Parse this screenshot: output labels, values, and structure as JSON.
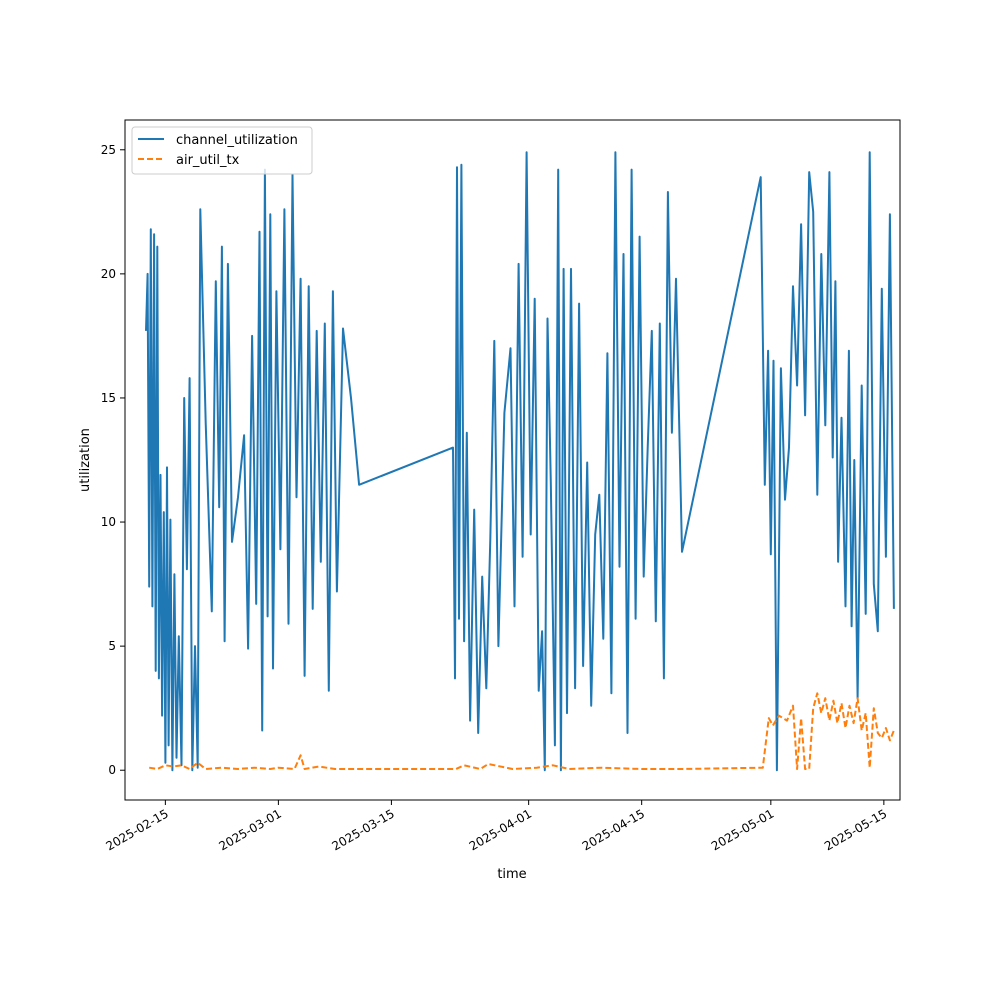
{
  "chart_data": {
    "type": "line",
    "xlabel": "time",
    "ylabel": "utilization",
    "x_type": "date",
    "xlim": [
      "2025-02-10",
      "2025-05-17"
    ],
    "ylim": [
      -1.2,
      26.2
    ],
    "x_ticks": [
      "2025-02-15",
      "2025-03-01",
      "2025-03-15",
      "2025-04-01",
      "2025-04-15",
      "2025-05-01",
      "2025-05-15"
    ],
    "y_ticks": [
      0,
      5,
      10,
      15,
      20,
      25
    ],
    "grid": false,
    "legend_position": "upper-left",
    "series": [
      {
        "name": "channel_utilization",
        "color": "#1f77b4",
        "style": "solid",
        "points": [
          [
            "2025-02-13",
            17.7
          ],
          [
            "2025-02-13",
            20.0
          ],
          [
            "2025-02-13",
            7.4
          ],
          [
            "2025-02-13",
            21.8
          ],
          [
            "2025-02-13",
            6.6
          ],
          [
            "2025-02-14",
            21.6
          ],
          [
            "2025-02-14",
            4.0
          ],
          [
            "2025-02-14",
            21.1
          ],
          [
            "2025-02-14",
            3.7
          ],
          [
            "2025-02-14",
            11.9
          ],
          [
            "2025-02-15",
            2.2
          ],
          [
            "2025-02-15",
            10.4
          ],
          [
            "2025-02-15",
            0.3
          ],
          [
            "2025-02-15",
            12.2
          ],
          [
            "2025-02-15",
            1.0
          ],
          [
            "2025-02-16",
            10.1
          ],
          [
            "2025-02-16",
            0.0
          ],
          [
            "2025-02-16",
            7.9
          ],
          [
            "2025-02-16",
            0.5
          ],
          [
            "2025-02-17",
            5.4
          ],
          [
            "2025-02-17",
            0.2
          ],
          [
            "2025-02-17",
            15.0
          ],
          [
            "2025-02-18",
            8.1
          ],
          [
            "2025-02-18",
            15.8
          ],
          [
            "2025-02-18",
            0.0
          ],
          [
            "2025-02-19",
            5.0
          ],
          [
            "2025-02-19",
            0.1
          ],
          [
            "2025-02-19",
            22.6
          ],
          [
            "2025-02-20",
            14.0
          ],
          [
            "2025-02-21",
            6.4
          ],
          [
            "2025-02-21",
            19.7
          ],
          [
            "2025-02-22",
            10.6
          ],
          [
            "2025-02-22",
            21.1
          ],
          [
            "2025-02-22",
            5.2
          ],
          [
            "2025-02-23",
            20.4
          ],
          [
            "2025-02-23",
            9.2
          ],
          [
            "2025-02-24",
            11.0
          ],
          [
            "2025-02-25",
            13.5
          ],
          [
            "2025-02-25",
            4.9
          ],
          [
            "2025-02-26",
            17.5
          ],
          [
            "2025-02-26",
            6.7
          ],
          [
            "2025-02-27",
            21.7
          ],
          [
            "2025-02-27",
            1.6
          ],
          [
            "2025-02-27",
            24.2
          ],
          [
            "2025-02-28",
            6.2
          ],
          [
            "2025-02-28",
            22.4
          ],
          [
            "2025-02-28",
            4.1
          ],
          [
            "2025-03-01",
            19.3
          ],
          [
            "2025-03-01",
            8.9
          ],
          [
            "2025-03-02",
            22.6
          ],
          [
            "2025-03-02",
            5.9
          ],
          [
            "2025-03-03",
            24.0
          ],
          [
            "2025-03-03",
            11.0
          ],
          [
            "2025-03-04",
            19.8
          ],
          [
            "2025-03-04",
            3.8
          ],
          [
            "2025-03-05",
            19.5
          ],
          [
            "2025-03-05",
            6.5
          ],
          [
            "2025-03-06",
            17.7
          ],
          [
            "2025-03-06",
            8.4
          ],
          [
            "2025-03-07",
            18.0
          ],
          [
            "2025-03-07",
            3.2
          ],
          [
            "2025-03-08",
            19.3
          ],
          [
            "2025-03-08",
            7.2
          ],
          [
            "2025-03-09",
            17.8
          ],
          [
            "2025-03-10",
            15.0
          ],
          [
            "2025-03-11",
            11.5
          ],
          [
            "2025-03-23",
            13.0
          ],
          [
            "2025-03-23",
            3.7
          ],
          [
            "2025-03-23",
            24.3
          ],
          [
            "2025-03-23",
            6.1
          ],
          [
            "2025-03-24",
            24.4
          ],
          [
            "2025-03-24",
            5.2
          ],
          [
            "2025-03-24",
            13.6
          ],
          [
            "2025-03-25",
            2.0
          ],
          [
            "2025-03-25",
            10.5
          ],
          [
            "2025-03-26",
            1.5
          ],
          [
            "2025-03-26",
            7.8
          ],
          [
            "2025-03-27",
            3.3
          ],
          [
            "2025-03-27",
            9.3
          ],
          [
            "2025-03-28",
            17.3
          ],
          [
            "2025-03-28",
            5.0
          ],
          [
            "2025-03-29",
            14.4
          ],
          [
            "2025-03-30",
            17.0
          ],
          [
            "2025-03-30",
            6.6
          ],
          [
            "2025-03-31",
            20.4
          ],
          [
            "2025-03-31",
            8.6
          ],
          [
            "2025-04-01",
            24.9
          ],
          [
            "2025-04-01",
            9.5
          ],
          [
            "2025-04-02",
            19.0
          ],
          [
            "2025-04-02",
            3.2
          ],
          [
            "2025-04-03",
            5.6
          ],
          [
            "2025-04-03",
            0.0
          ],
          [
            "2025-04-03",
            18.2
          ],
          [
            "2025-04-04",
            11.6
          ],
          [
            "2025-04-04",
            1.0
          ],
          [
            "2025-04-05",
            24.2
          ],
          [
            "2025-04-05",
            0.0
          ],
          [
            "2025-04-05",
            20.2
          ],
          [
            "2025-04-06",
            2.3
          ],
          [
            "2025-04-06",
            20.2
          ],
          [
            "2025-04-07",
            3.3
          ],
          [
            "2025-04-07",
            18.8
          ],
          [
            "2025-04-08",
            4.2
          ],
          [
            "2025-04-08",
            12.4
          ],
          [
            "2025-04-09",
            2.6
          ],
          [
            "2025-04-09",
            9.5
          ],
          [
            "2025-04-10",
            11.1
          ],
          [
            "2025-04-10",
            5.3
          ],
          [
            "2025-04-11",
            16.8
          ],
          [
            "2025-04-11",
            3.1
          ],
          [
            "2025-04-12",
            24.9
          ],
          [
            "2025-04-12",
            8.2
          ],
          [
            "2025-04-13",
            20.8
          ],
          [
            "2025-04-13",
            1.5
          ],
          [
            "2025-04-14",
            24.2
          ],
          [
            "2025-04-14",
            6.1
          ],
          [
            "2025-04-15",
            21.5
          ],
          [
            "2025-04-15",
            7.8
          ],
          [
            "2025-04-16",
            13.0
          ],
          [
            "2025-04-16",
            17.7
          ],
          [
            "2025-04-17",
            6.0
          ],
          [
            "2025-04-17",
            18.0
          ],
          [
            "2025-04-18",
            3.7
          ],
          [
            "2025-04-18",
            23.3
          ],
          [
            "2025-04-19",
            13.6
          ],
          [
            "2025-04-19",
            19.8
          ],
          [
            "2025-04-20",
            8.8
          ],
          [
            "2025-04-30",
            23.9
          ],
          [
            "2025-04-30",
            11.5
          ],
          [
            "2025-05-01",
            16.9
          ],
          [
            "2025-05-01",
            8.7
          ],
          [
            "2025-05-01",
            16.5
          ],
          [
            "2025-05-02",
            0.0
          ],
          [
            "2025-05-02",
            16.2
          ],
          [
            "2025-05-03",
            10.9
          ],
          [
            "2025-05-03",
            13.0
          ],
          [
            "2025-05-04",
            19.5
          ],
          [
            "2025-05-04",
            15.5
          ],
          [
            "2025-05-05",
            22.0
          ],
          [
            "2025-05-05",
            14.3
          ],
          [
            "2025-05-06",
            24.1
          ],
          [
            "2025-05-06",
            22.5
          ],
          [
            "2025-05-07",
            11.1
          ],
          [
            "2025-05-07",
            20.8
          ],
          [
            "2025-05-08",
            13.9
          ],
          [
            "2025-05-08",
            24.1
          ],
          [
            "2025-05-09",
            12.6
          ],
          [
            "2025-05-09",
            19.7
          ],
          [
            "2025-05-09",
            8.4
          ],
          [
            "2025-05-10",
            14.2
          ],
          [
            "2025-05-10",
            6.6
          ],
          [
            "2025-05-11",
            16.9
          ],
          [
            "2025-05-11",
            5.8
          ],
          [
            "2025-05-11",
            12.5
          ],
          [
            "2025-05-12",
            2.9
          ],
          [
            "2025-05-12",
            15.5
          ],
          [
            "2025-05-13",
            6.3
          ],
          [
            "2025-05-13",
            24.9
          ],
          [
            "2025-05-14",
            7.5
          ],
          [
            "2025-05-14",
            5.6
          ],
          [
            "2025-05-15",
            19.4
          ],
          [
            "2025-05-15",
            8.6
          ],
          [
            "2025-05-16",
            22.4
          ],
          [
            "2025-05-16",
            6.5
          ]
        ]
      },
      {
        "name": "air_util_tx",
        "color": "#ff7f0e",
        "style": "dashed",
        "points": [
          [
            "2025-02-13",
            0.1
          ],
          [
            "2025-02-14",
            0.05
          ],
          [
            "2025-02-15",
            0.2
          ],
          [
            "2025-02-16",
            0.15
          ],
          [
            "2025-02-17",
            0.2
          ],
          [
            "2025-02-18",
            0.05
          ],
          [
            "2025-02-19",
            0.3
          ],
          [
            "2025-02-20",
            0.05
          ],
          [
            "2025-02-22",
            0.1
          ],
          [
            "2025-02-24",
            0.05
          ],
          [
            "2025-02-26",
            0.1
          ],
          [
            "2025-02-28",
            0.05
          ],
          [
            "2025-03-01",
            0.1
          ],
          [
            "2025-03-03",
            0.05
          ],
          [
            "2025-03-04",
            0.6
          ],
          [
            "2025-03-04",
            0.05
          ],
          [
            "2025-03-06",
            0.15
          ],
          [
            "2025-03-08",
            0.05
          ],
          [
            "2025-03-11",
            0.05
          ],
          [
            "2025-03-23",
            0.05
          ],
          [
            "2025-03-24",
            0.2
          ],
          [
            "2025-03-26",
            0.05
          ],
          [
            "2025-03-27",
            0.25
          ],
          [
            "2025-03-30",
            0.05
          ],
          [
            "2025-04-02",
            0.1
          ],
          [
            "2025-04-04",
            0.2
          ],
          [
            "2025-04-06",
            0.05
          ],
          [
            "2025-04-10",
            0.1
          ],
          [
            "2025-04-15",
            0.05
          ],
          [
            "2025-04-20",
            0.05
          ],
          [
            "2025-04-30",
            0.1
          ],
          [
            "2025-05-01",
            2.1
          ],
          [
            "2025-05-01",
            1.8
          ],
          [
            "2025-05-02",
            2.2
          ],
          [
            "2025-05-03",
            2.0
          ],
          [
            "2025-05-04",
            2.6
          ],
          [
            "2025-05-04",
            0.05
          ],
          [
            "2025-05-05",
            2.1
          ],
          [
            "2025-05-05",
            0.05
          ],
          [
            "2025-05-06",
            0.05
          ],
          [
            "2025-05-06",
            2.5
          ],
          [
            "2025-05-07",
            3.1
          ],
          [
            "2025-05-07",
            2.3
          ],
          [
            "2025-05-08",
            2.9
          ],
          [
            "2025-05-08",
            2.0
          ],
          [
            "2025-05-09",
            2.8
          ],
          [
            "2025-05-09",
            1.9
          ],
          [
            "2025-05-10",
            2.7
          ],
          [
            "2025-05-10",
            1.7
          ],
          [
            "2025-05-11",
            2.6
          ],
          [
            "2025-05-11",
            1.9
          ],
          [
            "2025-05-12",
            2.9
          ],
          [
            "2025-05-12",
            1.6
          ],
          [
            "2025-05-13",
            2.3
          ],
          [
            "2025-05-13",
            0.1
          ],
          [
            "2025-05-14",
            2.5
          ],
          [
            "2025-05-14",
            1.5
          ],
          [
            "2025-05-15",
            1.3
          ],
          [
            "2025-05-15",
            1.7
          ],
          [
            "2025-05-16",
            1.2
          ],
          [
            "2025-05-16",
            1.6
          ]
        ]
      }
    ]
  }
}
